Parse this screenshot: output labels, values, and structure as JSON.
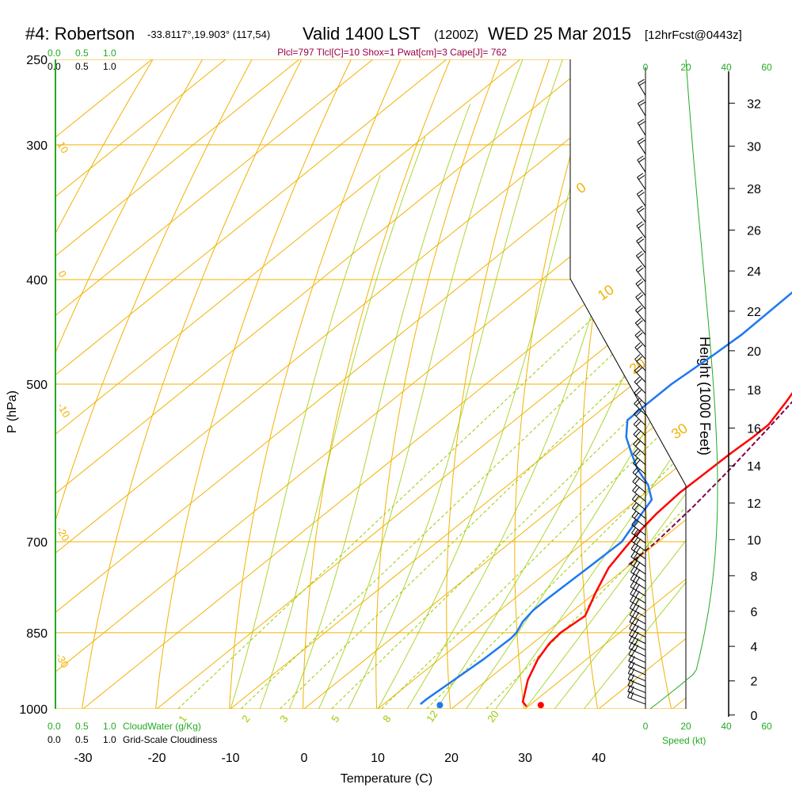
{
  "header": {
    "station": "#4: Robertson",
    "coords": "-33.8117°,19.903° (117,54)",
    "valid": "Valid 1400 LST",
    "utc": "(1200Z)",
    "date": "WED 25 Mar 2015",
    "forecast": "[12hrFcst@0443z]",
    "indices": "Plcl=797 Tlcl[C]=10 Shox=1 Pwat[cm]=3 Cape[J]= 762"
  },
  "colors": {
    "isobar": "#f2b200",
    "isotherm": "#f2b200",
    "dry_adiabat": "#f2b200",
    "moist_adiabat": "#99cc00",
    "mixing_ratio": "#99cc00",
    "temperature": "#ff0000",
    "dewpoint": "#1e78f0",
    "parcel": "#800040",
    "height_curve": "#22aa22",
    "scale_green": "#22aa22"
  },
  "scales": {
    "cloudwater_ticks": [
      "0.0",
      "0.5",
      "1.0"
    ],
    "cloudiness_ticks": [
      "0.0",
      "0.5",
      "1.0"
    ],
    "cloudwater_label": "CloudWater (g/Kg)",
    "cloudiness_label": "Grid-Scale Cloudiness",
    "speed_ticks": [
      "0",
      "20",
      "40",
      "60"
    ],
    "speed_label": "Speed (kt)"
  },
  "chart_data": {
    "type": "line",
    "subtype": "skew-t log-p sounding",
    "xlabel": "Temperature (C)",
    "ylabel": "P (hPa)",
    "y2label": "Height (1000 Feet)",
    "x_ticks": [
      "-30",
      "-20",
      "-10",
      "0",
      "10",
      "20",
      "30",
      "40"
    ],
    "pressure_ticks": [
      "250",
      "300",
      "400",
      "500",
      "700",
      "850",
      "1000"
    ],
    "height_ticks": [
      "0",
      "2",
      "4",
      "6",
      "8",
      "10",
      "12",
      "14",
      "16",
      "18",
      "20",
      "22",
      "24",
      "26",
      "28",
      "30",
      "32"
    ],
    "isotherm_labels": [
      "0",
      "10",
      "20",
      "30"
    ],
    "dry_adiabat_labels": [
      "10",
      "0",
      "-10",
      "-20",
      "-30"
    ],
    "mixing_ratio_labels": [
      "1",
      "2",
      "3",
      "5",
      "8",
      "12",
      "20"
    ],
    "temperature": [
      {
        "p": 995,
        "t": 29.8
      },
      {
        "p": 985,
        "t": 28.5
      },
      {
        "p": 940,
        "t": 25.5
      },
      {
        "p": 900,
        "t": 23.4
      },
      {
        "p": 870,
        "t": 22.3
      },
      {
        "p": 850,
        "t": 22.0
      },
      {
        "p": 820,
        "t": 22.5
      },
      {
        "p": 780,
        "t": 20.0
      },
      {
        "p": 740,
        "t": 17.6
      },
      {
        "p": 710,
        "t": 16.5
      },
      {
        "p": 690,
        "t": 15.8
      },
      {
        "p": 660,
        "t": 15.0
      },
      {
        "p": 630,
        "t": 14.6
      },
      {
        "p": 600,
        "t": 14.8
      },
      {
        "p": 580,
        "t": 14.9
      },
      {
        "p": 560,
        "t": 15.2
      },
      {
        "p": 545,
        "t": 15.2
      },
      {
        "p": 520,
        "t": 13.8
      },
      {
        "p": 500,
        "t": 12.5
      },
      {
        "p": 450,
        "t": 9.8
      },
      {
        "p": 400,
        "t": 7.0
      },
      {
        "p": 350,
        "t": 4.3
      },
      {
        "p": 300,
        "t": 2.0
      },
      {
        "p": 275,
        "t": 0.5
      },
      {
        "p": 262,
        "t": 0.3
      }
    ],
    "dewpoint": [
      {
        "p": 990,
        "t": 15.0
      },
      {
        "p": 980,
        "t": 15.0
      },
      {
        "p": 940,
        "t": 15.5
      },
      {
        "p": 900,
        "t": 16.0
      },
      {
        "p": 860,
        "t": 16.2
      },
      {
        "p": 850,
        "t": 16.0
      },
      {
        "p": 830,
        "t": 15.0
      },
      {
        "p": 810,
        "t": 14.5
      },
      {
        "p": 790,
        "t": 14.5
      },
      {
        "p": 740,
        "t": 14.8
      },
      {
        "p": 700,
        "t": 15.0
      },
      {
        "p": 680,
        "t": 14.0
      },
      {
        "p": 660,
        "t": 13.0
      },
      {
        "p": 640,
        "t": 12.0
      },
      {
        "p": 620,
        "t": 9.0
      },
      {
        "p": 600,
        "t": 5.0
      },
      {
        "p": 580,
        "t": 1.5
      },
      {
        "p": 560,
        "t": -2.0
      },
      {
        "p": 540,
        "t": -4.7
      },
      {
        "p": 520,
        "t": -4.8
      },
      {
        "p": 500,
        "t": -4.8
      },
      {
        "p": 470,
        "t": -4.0
      },
      {
        "p": 450,
        "t": -3.6
      },
      {
        "p": 400,
        "t": -3.9
      },
      {
        "p": 350,
        "t": -4.8
      },
      {
        "p": 320,
        "t": -6.0
      },
      {
        "p": 300,
        "t": -7.3
      },
      {
        "p": 280,
        "t": -9.5
      },
      {
        "p": 262,
        "t": -12.4
      }
    ],
    "parcel": [
      {
        "p": 735,
        "t": 19.8
      },
      {
        "p": 700,
        "t": 19.7
      },
      {
        "p": 650,
        "t": 18.8
      },
      {
        "p": 600,
        "t": 17.5
      },
      {
        "p": 550,
        "t": 15.8
      },
      {
        "p": 500,
        "t": 13.8
      },
      {
        "p": 450,
        "t": 11.5
      },
      {
        "p": 400,
        "t": 9.0
      },
      {
        "p": 350,
        "t": 6.8
      },
      {
        "p": 300,
        "t": 4.2
      },
      {
        "p": 275,
        "t": 2.0
      }
    ],
    "surface": {
      "p": 992,
      "temperature": 31.5,
      "dewpoint": 17.8
    },
    "height_curve_note": "standard height scale drawn alongside pressure axis"
  }
}
